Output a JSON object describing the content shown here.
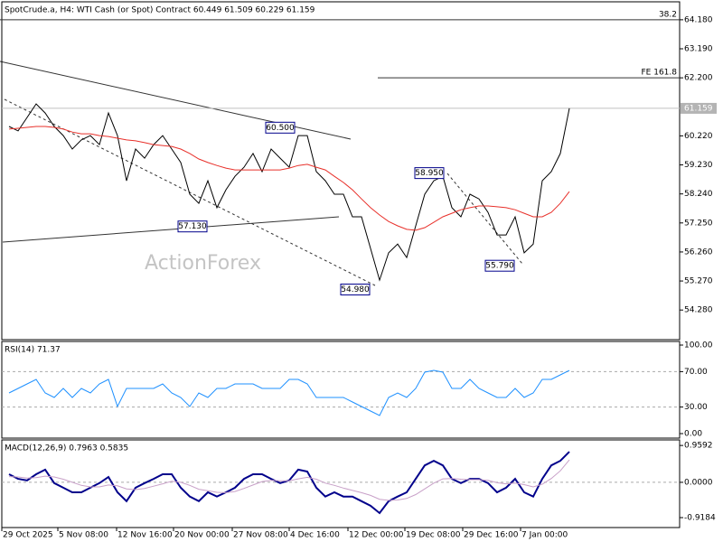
{
  "chart_data": [
    {
      "type": "line",
      "title": "SpotCrude.a, H4:  WTI Cash (or Spot) Contract  60.449 61.509 60.229 61.159",
      "watermark": "ActionForex",
      "x": [
        1,
        2,
        3,
        4,
        5,
        6,
        7,
        8,
        9,
        10,
        11,
        12,
        13,
        14,
        15,
        16,
        17,
        18,
        19,
        20,
        21,
        22,
        23,
        24,
        25,
        26,
        27,
        28,
        29,
        30,
        31,
        32,
        33,
        34,
        35,
        36,
        37,
        38,
        39,
        40,
        41,
        42,
        43,
        44,
        45,
        46,
        47,
        48,
        49,
        50,
        51,
        52,
        53,
        54,
        55,
        56,
        57,
        58,
        59,
        60,
        61,
        62,
        63
      ],
      "xlim": [
        0,
        75
      ],
      "ylim": [
        53.3,
        64.7
      ],
      "yticks": [
        {
          "value": 64.18,
          "label": "64.180"
        },
        {
          "value": 63.19,
          "label": "63.190"
        },
        {
          "value": 62.2,
          "label": "62.200"
        },
        {
          "value": 60.22,
          "label": "60.220"
        },
        {
          "value": 59.23,
          "label": "59.230"
        },
        {
          "value": 58.24,
          "label": "58.240"
        },
        {
          "value": 57.25,
          "label": "57.250"
        },
        {
          "value": 56.26,
          "label": "56.260"
        },
        {
          "value": 55.27,
          "label": "55.270"
        },
        {
          "value": 54.28,
          "label": "54.280"
        }
      ],
      "last_price": {
        "value": 61.159,
        "label": "61.159"
      },
      "series": [
        {
          "name": "Close",
          "color": "#000000",
          "values": [
            60.54,
            60.39,
            60.85,
            61.31,
            61.0,
            60.54,
            60.23,
            59.77,
            60.08,
            60.23,
            59.92,
            61.0,
            60.23,
            58.69,
            59.77,
            59.46,
            59.92,
            60.23,
            59.77,
            59.31,
            58.23,
            57.92,
            58.69,
            57.77,
            58.38,
            58.84,
            59.15,
            59.62,
            59.0,
            59.77,
            59.46,
            59.15,
            60.23,
            60.23,
            59.0,
            58.69,
            58.23,
            58.23,
            57.46,
            57.46,
            56.38,
            55.3,
            56.23,
            56.53,
            56.07,
            57.15,
            58.23,
            58.69,
            58.84,
            57.77,
            57.46,
            58.23,
            58.07,
            57.61,
            56.84,
            56.84,
            57.46,
            56.23,
            56.53,
            58.69,
            59.0,
            59.62,
            61.16
          ]
        },
        {
          "name": "MA",
          "color": "#e8302a",
          "values": [
            60.45,
            60.48,
            60.51,
            60.54,
            60.54,
            60.51,
            60.45,
            60.35,
            60.29,
            60.29,
            60.23,
            60.2,
            60.14,
            60.08,
            60.05,
            59.99,
            59.92,
            59.89,
            59.86,
            59.77,
            59.62,
            59.43,
            59.31,
            59.21,
            59.12,
            59.06,
            59.06,
            59.06,
            59.06,
            59.06,
            59.06,
            59.12,
            59.21,
            59.25,
            59.15,
            59.06,
            58.84,
            58.63,
            58.38,
            58.07,
            57.77,
            57.52,
            57.3,
            57.15,
            57.03,
            57.0,
            57.09,
            57.27,
            57.46,
            57.58,
            57.7,
            57.77,
            57.83,
            57.83,
            57.8,
            57.77,
            57.7,
            57.58,
            57.46,
            57.46,
            57.61,
            57.92,
            58.32
          ]
        }
      ],
      "annotations": [
        {
          "label": "60.500",
          "value": 60.5,
          "x": 31
        },
        {
          "label": "57.130",
          "value": 57.13,
          "x": 21.3
        },
        {
          "label": "54.980",
          "value": 54.98,
          "x": 39.3
        },
        {
          "label": "58.950",
          "value": 58.95,
          "x": 47.5
        },
        {
          "label": "55.790",
          "value": 55.79,
          "x": 55.3
        }
      ],
      "levels": [
        {
          "text": "38.2",
          "price": 64.18
        },
        {
          "text": "FE 161.8",
          "price": 62.2
        }
      ]
    },
    {
      "type": "line",
      "title": "RSI(14) 71.37",
      "x": [
        1,
        2,
        3,
        4,
        5,
        6,
        7,
        8,
        9,
        10,
        11,
        12,
        13,
        14,
        15,
        16,
        17,
        18,
        19,
        20,
        21,
        22,
        23,
        24,
        25,
        26,
        27,
        28,
        29,
        30,
        31,
        32,
        33,
        34,
        35,
        36,
        37,
        38,
        39,
        40,
        41,
        42,
        43,
        44,
        45,
        46,
        47,
        48,
        49,
        50,
        51,
        52,
        53,
        54,
        55,
        56,
        57,
        58,
        59,
        60,
        61,
        62,
        63
      ],
      "xlim": [
        0,
        75
      ],
      "ylim": [
        0,
        100
      ],
      "grid": "dashed",
      "yticks": [
        {
          "value": 100,
          "label": "100.00"
        },
        {
          "value": 70,
          "label": "70.00"
        },
        {
          "value": 30,
          "label": "30.00"
        },
        {
          "value": 0,
          "label": "0.00"
        }
      ],
      "series": [
        {
          "name": "RSI",
          "color": "#1e90ff",
          "values": [
            45.9,
            51.0,
            56.1,
            61.2,
            45.9,
            40.8,
            51.0,
            40.8,
            51.0,
            45.9,
            56.1,
            61.2,
            30.6,
            51.0,
            51.0,
            51.0,
            51.0,
            56.1,
            45.9,
            40.8,
            30.6,
            45.9,
            40.8,
            51.0,
            51.0,
            56.1,
            56.1,
            56.1,
            51.0,
            51.0,
            51.0,
            61.2,
            61.2,
            56.1,
            40.8,
            40.8,
            40.8,
            40.8,
            35.7,
            30.6,
            25.5,
            20.4,
            40.8,
            45.9,
            40.8,
            51.0,
            69.4,
            71.4,
            69.4,
            51.0,
            51.0,
            61.2,
            51.0,
            45.9,
            40.8,
            40.8,
            51.0,
            40.8,
            45.9,
            61.2,
            61.2,
            66.3,
            71.37
          ]
        }
      ]
    },
    {
      "type": "line",
      "title": "MACD(12,26,9) 0.7963 0.5835",
      "x": [
        1,
        2,
        3,
        4,
        5,
        6,
        7,
        8,
        9,
        10,
        11,
        12,
        13,
        14,
        15,
        16,
        17,
        18,
        19,
        20,
        21,
        22,
        23,
        24,
        25,
        26,
        27,
        28,
        29,
        30,
        31,
        32,
        33,
        34,
        35,
        36,
        37,
        38,
        39,
        40,
        41,
        42,
        43,
        44,
        45,
        46,
        47,
        48,
        49,
        50,
        51,
        52,
        53,
        54,
        55,
        56,
        57,
        58,
        59,
        60,
        61,
        62,
        63
      ],
      "xlim": [
        0,
        75
      ],
      "ylim": [
        -1.13,
        1.08
      ],
      "grid": "dashed",
      "yticks": [
        {
          "value": 0.9592,
          "label": "0.9592"
        },
        {
          "value": 0,
          "label": "0.0000"
        },
        {
          "value": -0.9184,
          "label": "-0.9184"
        }
      ],
      "xticks": [
        {
          "value": 0.2,
          "label": "29 Oct 2025"
        },
        {
          "value": 6.4,
          "label": "5 Nov 08:00"
        },
        {
          "value": 12.9,
          "label": "12 Nov 16:00"
        },
        {
          "value": 19.2,
          "label": "20 Nov 00:00"
        },
        {
          "value": 25.7,
          "label": "27 Nov 08:00"
        },
        {
          "value": 32,
          "label": "4 Dec 16:00"
        },
        {
          "value": 38.5,
          "label": "12 Dec 00:00"
        },
        {
          "value": 44.8,
          "label": "19 Dec 08:00"
        },
        {
          "value": 51.2,
          "label": "29 Dec 16:00"
        },
        {
          "value": 57.6,
          "label": "7 Jan 00:00"
        }
      ],
      "series": [
        {
          "name": "MACD",
          "color": "#00008b",
          "values": [
            0.21,
            0.09,
            0.05,
            0.21,
            0.33,
            -0.02,
            -0.14,
            -0.26,
            -0.26,
            -0.14,
            -0.02,
            0.14,
            -0.26,
            -0.49,
            -0.14,
            -0.02,
            0.09,
            0.21,
            0.21,
            -0.14,
            -0.37,
            -0.49,
            -0.26,
            -0.37,
            -0.26,
            -0.14,
            0.09,
            0.21,
            0.21,
            0.09,
            -0.02,
            0.05,
            0.33,
            0.28,
            -0.14,
            -0.37,
            -0.26,
            -0.37,
            -0.37,
            -0.49,
            -0.61,
            -0.8,
            -0.49,
            -0.37,
            -0.26,
            0.09,
            0.44,
            0.56,
            0.44,
            0.09,
            -0.02,
            0.09,
            0.09,
            -0.02,
            -0.26,
            -0.14,
            0.09,
            -0.26,
            -0.37,
            0.09,
            0.44,
            0.56,
            0.7963
          ]
        },
        {
          "name": "Signal",
          "color": "#c8a0c8",
          "values": [
            0.15,
            0.14,
            0.11,
            0.12,
            0.16,
            0.14,
            0.08,
            0.0,
            -0.08,
            -0.12,
            -0.12,
            -0.07,
            -0.09,
            -0.17,
            -0.19,
            -0.16,
            -0.1,
            -0.04,
            0.03,
            0.0,
            -0.08,
            -0.18,
            -0.22,
            -0.26,
            -0.27,
            -0.24,
            -0.16,
            -0.07,
            0.02,
            0.05,
            0.04,
            0.04,
            0.09,
            0.13,
            0.08,
            -0.02,
            -0.08,
            -0.15,
            -0.21,
            -0.27,
            -0.34,
            -0.44,
            -0.47,
            -0.46,
            -0.42,
            -0.32,
            -0.17,
            -0.02,
            0.09,
            0.1,
            0.08,
            0.07,
            0.07,
            0.05,
            -0.01,
            -0.04,
            -0.02,
            -0.06,
            -0.12,
            -0.05,
            0.1,
            0.3,
            0.5835
          ]
        }
      ]
    }
  ]
}
